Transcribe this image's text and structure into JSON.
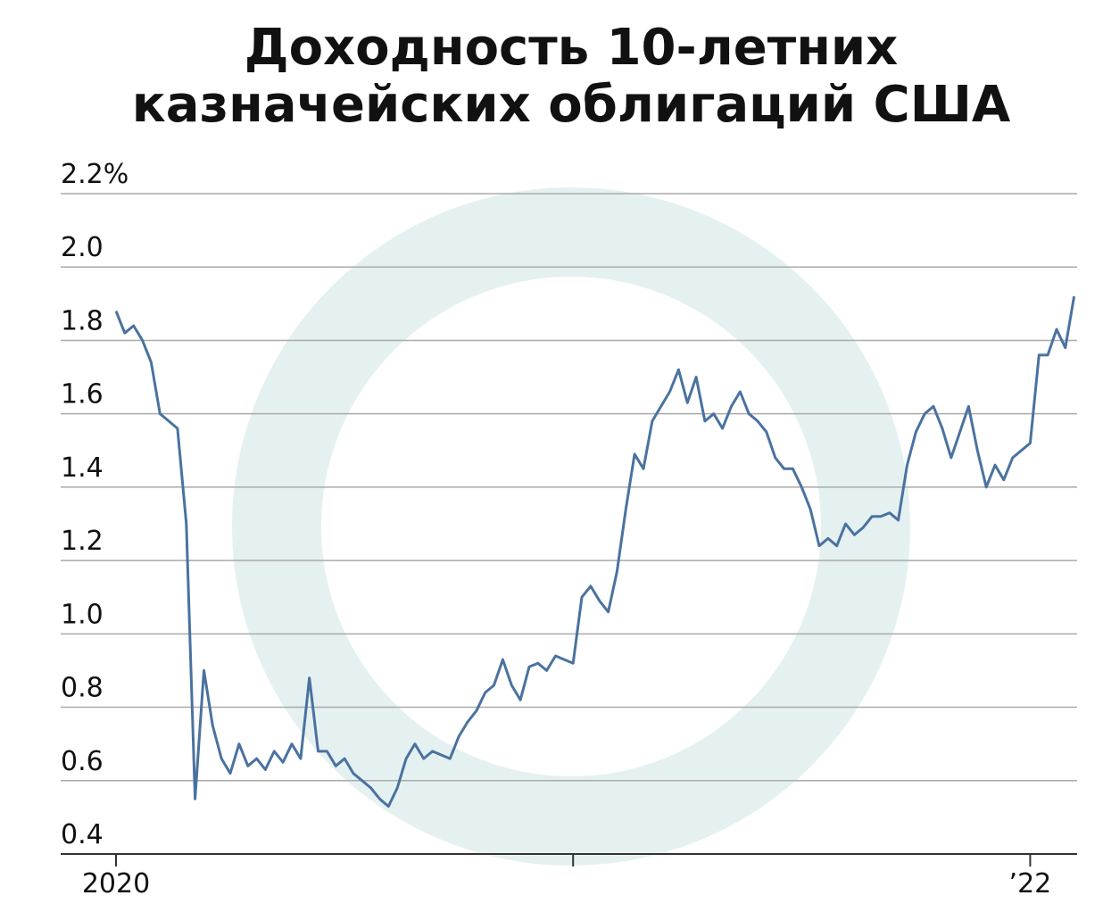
{
  "chart_data": {
    "type": "line",
    "title": [
      "Доходность 10-летних",
      "казначейских облигаций США"
    ],
    "categories": [
      "2020",
      null,
      null,
      null,
      null,
      null,
      null,
      null,
      null,
      null,
      null,
      null,
      null,
      null,
      null,
      null,
      null,
      null,
      null,
      null,
      null,
      null,
      null,
      null,
      null,
      null,
      null,
      null,
      null,
      null,
      null,
      null,
      null,
      null,
      null,
      null,
      null,
      null,
      null,
      null,
      null,
      null,
      null,
      null,
      null,
      null,
      null,
      null,
      null,
      null,
      null,
      null,
      null,
      null,
      null,
      null,
      null,
      null,
      null,
      null,
      null,
      null,
      null,
      null,
      null,
      null,
      null,
      null,
      null,
      null,
      null,
      null,
      null,
      null,
      null,
      null,
      null,
      null,
      null,
      null,
      null,
      null,
      null,
      null,
      null,
      null,
      null,
      null,
      null,
      null,
      null,
      null,
      null,
      null,
      null,
      null,
      null,
      null,
      null,
      null,
      null,
      null,
      null,
      null,
      "’22",
      null,
      null,
      null,
      null,
      null
    ],
    "values": [
      1.88,
      1.82,
      1.84,
      1.8,
      1.74,
      1.6,
      1.58,
      1.56,
      1.3,
      0.55,
      0.9,
      0.75,
      0.66,
      0.62,
      0.7,
      0.64,
      0.66,
      0.63,
      0.68,
      0.65,
      0.7,
      0.66,
      0.88,
      0.68,
      0.68,
      0.64,
      0.66,
      0.62,
      0.6,
      0.58,
      0.55,
      0.53,
      0.58,
      0.66,
      0.7,
      0.66,
      0.68,
      0.67,
      0.66,
      0.72,
      0.76,
      0.79,
      0.84,
      0.86,
      0.93,
      0.86,
      0.82,
      0.91,
      0.92,
      0.9,
      0.94,
      0.93,
      0.92,
      1.1,
      1.13,
      1.09,
      1.06,
      1.17,
      1.34,
      1.49,
      1.45,
      1.58,
      1.62,
      1.66,
      1.72,
      1.63,
      1.7,
      1.58,
      1.6,
      1.56,
      1.62,
      1.66,
      1.6,
      1.58,
      1.55,
      1.48,
      1.45,
      1.45,
      1.4,
      1.34,
      1.24,
      1.26,
      1.24,
      1.3,
      1.27,
      1.29,
      1.32,
      1.32,
      1.33,
      1.31,
      1.46,
      1.55,
      1.6,
      1.62,
      1.56,
      1.48,
      1.55,
      1.62,
      1.5,
      1.4,
      1.46,
      1.42,
      1.48,
      1.5,
      1.52,
      1.76,
      1.76,
      1.83,
      1.78,
      1.92
    ],
    "color": "#4a72a0",
    "xticks": [
      0,
      52,
      104
    ],
    "ylim": [
      0.4,
      2.2
    ],
    "yticks": [
      {
        "value": 0.4,
        "label": "0.4"
      },
      {
        "value": 0.6,
        "label": "0.6"
      },
      {
        "value": 0.8,
        "label": "0.8"
      },
      {
        "value": 1,
        "label": "1.0"
      },
      {
        "value": 1.2,
        "label": "1.2"
      },
      {
        "value": 1.4,
        "label": "1.4"
      },
      {
        "value": 1.6,
        "label": "1.6"
      },
      {
        "value": 1.8,
        "label": "1.8"
      },
      {
        "value": 2,
        "label": "2.0"
      },
      {
        "value": 2.2,
        "label": "2.2%"
      }
    ],
    "grid": true
  }
}
